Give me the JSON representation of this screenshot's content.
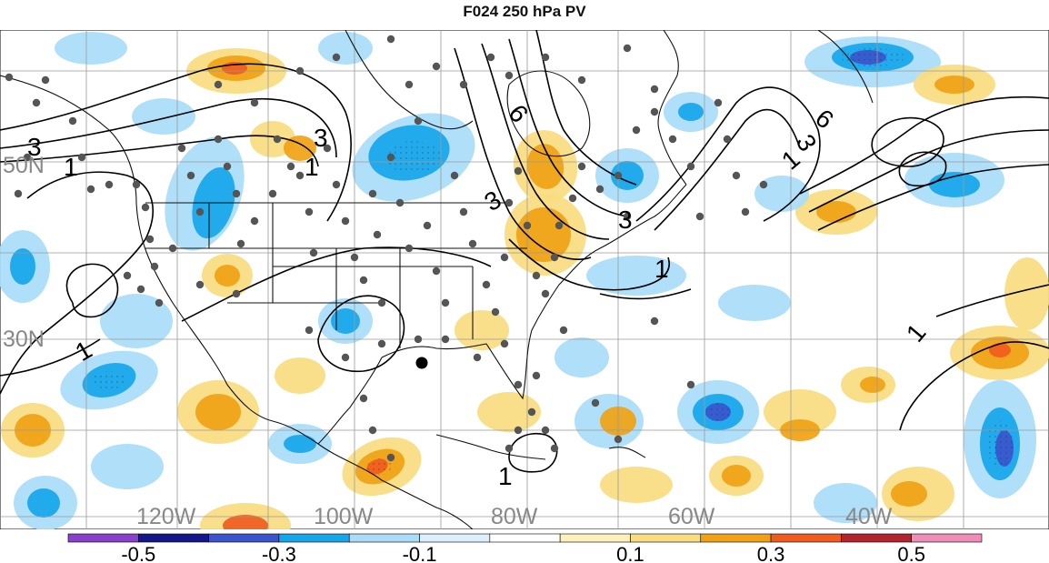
{
  "title": "F024 250 hPa PV",
  "map": {
    "lat_labels": [
      "50N",
      "30N"
    ],
    "lon_labels": [
      "120W",
      "100W",
      "80W",
      "60W",
      "40W"
    ],
    "contour_labels": [
      "3",
      "1",
      "3",
      "1",
      "6",
      "3",
      "3",
      "1",
      "6",
      "3",
      "1",
      "1",
      "1",
      "1"
    ]
  },
  "colorbar": {
    "tick_labels": [
      "-0.5",
      "-0.3",
      "-0.1",
      "0.1",
      "0.3",
      "0.5"
    ],
    "colors": [
      "#8a3fcf",
      "#14168c",
      "#3a55cc",
      "#16a6ea",
      "#a9dcf8",
      "#dceffb",
      "#ffffff",
      "#fdf0bb",
      "#f9dc80",
      "#f0a214",
      "#f05c1e",
      "#b3242e",
      "#f08cb8"
    ]
  },
  "colors": {
    "neg_strong": "#3a55cc",
    "neg_mid": "#16a6ea",
    "neg_light": "#a9dcf8",
    "pos_light": "#f9dc80",
    "pos_mid": "#f0a214",
    "pos_strong": "#f05c1e",
    "station_dot": "#555555"
  }
}
